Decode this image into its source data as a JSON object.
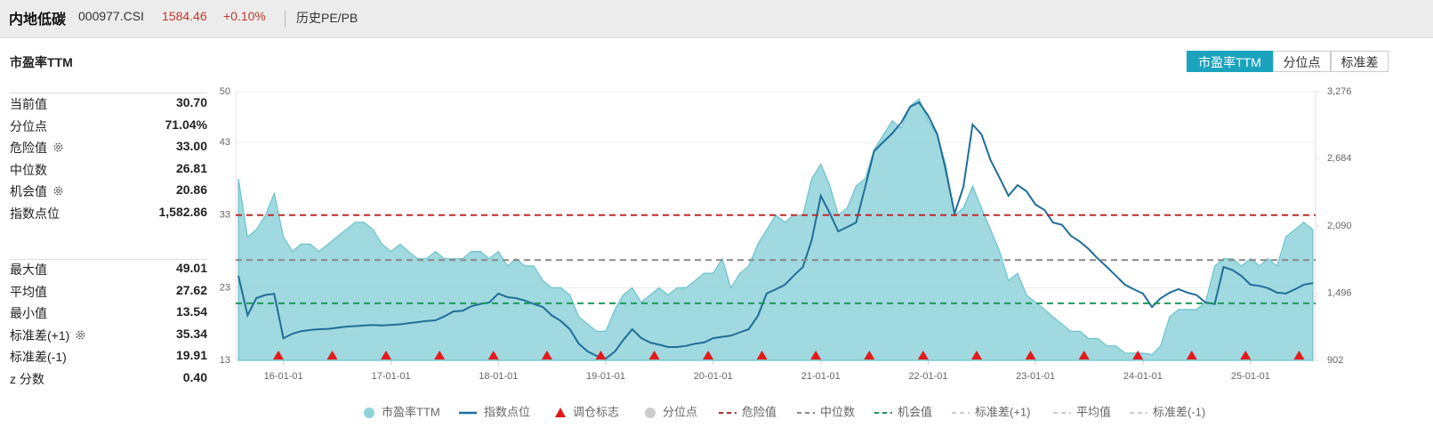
{
  "header": {
    "name": "内地低碳",
    "code": "000977.CSI",
    "price": "1584.46",
    "change": "+0.10%",
    "tab": "历史PE/PB"
  },
  "panel_title": "市盈率TTM",
  "buttons": [
    "市盈率TTM",
    "分位点",
    "标准差"
  ],
  "stats": [
    {
      "name": "当前值",
      "value": 30.7,
      "label": "30.70"
    },
    {
      "name": "分位点",
      "value": 71.04,
      "label": "71.04%"
    },
    {
      "name": "危险值",
      "value": 33,
      "label": "33.00",
      "gear": true
    },
    {
      "name": "中位数",
      "value": 26.81,
      "label": "26.81"
    },
    {
      "name": "机会值",
      "value": 20.86,
      "label": "20.86",
      "gear": true
    },
    {
      "name": "指数点位",
      "value": 1582.86,
      "label": "1,582.86"
    },
    {
      "name": "最大值",
      "value": 49.01,
      "label": "49.01"
    },
    {
      "name": "平均值",
      "value": 27.62,
      "label": "27.62"
    },
    {
      "name": "最小值",
      "value": 13.54,
      "label": "13.54"
    },
    {
      "name": "标准差(+1)",
      "value": 35.34,
      "label": "35.34",
      "gear": true
    },
    {
      "name": "标准差(-1)",
      "value": 19.91,
      "label": "19.91"
    },
    {
      "name": "z 分数",
      "value": 0.4,
      "label": "0.40"
    }
  ],
  "chart_data": {
    "type": "line",
    "x": [
      "15-08-01",
      "15-09-01",
      "15-10-01",
      "15-11-01",
      "15-12-01",
      "16-01-01",
      "16-02-01",
      "16-03-01",
      "16-04-01",
      "16-05-01",
      "16-06-01",
      "16-07-01",
      "16-08-01",
      "16-09-01",
      "16-10-01",
      "16-11-01",
      "16-12-01",
      "17-01-01",
      "17-02-01",
      "17-03-01",
      "17-04-01",
      "17-05-01",
      "17-06-01",
      "17-07-01",
      "17-08-01",
      "17-09-01",
      "17-10-01",
      "17-11-01",
      "17-12-01",
      "18-01-01",
      "18-02-01",
      "18-03-01",
      "18-04-01",
      "18-05-01",
      "18-06-01",
      "18-07-01",
      "18-08-01",
      "18-09-01",
      "18-10-01",
      "18-11-01",
      "18-12-01",
      "19-01-01",
      "19-02-01",
      "19-03-01",
      "19-04-01",
      "19-05-01",
      "19-06-01",
      "19-07-01",
      "19-08-01",
      "19-09-01",
      "19-10-01",
      "19-11-01",
      "19-12-01",
      "20-01-01",
      "20-02-01",
      "20-03-01",
      "20-04-01",
      "20-05-01",
      "20-06-01",
      "20-07-01",
      "20-08-01",
      "20-09-01",
      "20-10-01",
      "20-11-01",
      "20-12-01",
      "21-01-01",
      "21-02-01",
      "21-03-01",
      "21-04-01",
      "21-05-01",
      "21-06-01",
      "21-07-01",
      "21-08-01",
      "21-09-01",
      "21-10-01",
      "21-11-01",
      "21-12-01",
      "22-01-01",
      "22-02-01",
      "22-03-01",
      "22-04-01",
      "22-05-01",
      "22-06-01",
      "22-07-01",
      "22-08-01",
      "22-09-01",
      "22-10-01",
      "22-11-01",
      "22-12-01",
      "23-01-01",
      "23-02-01",
      "23-03-01",
      "23-04-01",
      "23-05-01",
      "23-06-01",
      "23-07-01",
      "23-08-01",
      "23-09-01",
      "23-10-01",
      "23-11-01",
      "23-12-01",
      "24-01-01",
      "24-02-01",
      "24-03-01",
      "24-04-01",
      "24-05-01",
      "24-06-01",
      "24-07-01",
      "24-08-01",
      "24-09-01",
      "24-10-01",
      "24-11-01",
      "24-12-01",
      "25-01-01",
      "25-02-01",
      "25-03-01",
      "25-04-01",
      "25-05-01",
      "25-06-01",
      "25-07-01",
      "25-08-01"
    ],
    "series": [
      {
        "name": "市盈率TTM",
        "color": "#8fd2d9",
        "area": true,
        "values": [
          38,
          30,
          31,
          33,
          36,
          30,
          28,
          29,
          29,
          28,
          29,
          30,
          31,
          32,
          32,
          31,
          29,
          28,
          29,
          28,
          27,
          27,
          28,
          27,
          27,
          27,
          28,
          28,
          27,
          28,
          26,
          27,
          26,
          26,
          24,
          23,
          23,
          22,
          19,
          18,
          17,
          17,
          20,
          22,
          23,
          21,
          22,
          23,
          22,
          23,
          23,
          24,
          25,
          25,
          27,
          23,
          25,
          26,
          29,
          31,
          33,
          32,
          33,
          33,
          38,
          40,
          37,
          33,
          34,
          37,
          38,
          42,
          44,
          46,
          45,
          48,
          49,
          46,
          44,
          40,
          33,
          34,
          37,
          34,
          31,
          28,
          24,
          25,
          22,
          21,
          20,
          19,
          18,
          17,
          17,
          16,
          16,
          15,
          15,
          14,
          14,
          14,
          13.8,
          15,
          19,
          20,
          20,
          20,
          21,
          26,
          27,
          27,
          26,
          27,
          26,
          27,
          26,
          30,
          31,
          32,
          31
        ]
      },
      {
        "name": "指数点位",
        "color": "#1f6e99",
        "axis": "y2",
        "values": [
          1649,
          1300,
          1452,
          1480,
          1490,
          1098,
          1138,
          1160,
          1170,
          1177,
          1180,
          1190,
          1200,
          1205,
          1210,
          1215,
          1210,
          1216,
          1220,
          1230,
          1240,
          1250,
          1256,
          1290,
          1334,
          1340,
          1380,
          1400,
          1413,
          1492,
          1460,
          1452,
          1430,
          1400,
          1374,
          1300,
          1250,
          1177,
          1050,
          980,
          941,
          918,
          981,
          1080,
          1177,
          1100,
          1059,
          1040,
          1020,
          1020,
          1030,
          1050,
          1060,
          1098,
          1110,
          1120,
          1150,
          1177,
          1295,
          1492,
          1530,
          1570,
          1650,
          1727,
          1963,
          2356,
          2199,
          2042,
          2080,
          2120,
          2435,
          2749,
          2830,
          2907,
          3000,
          3143,
          3182,
          3064,
          2900,
          2592,
          2199,
          2435,
          2985,
          2900,
          2671,
          2514,
          2356,
          2450,
          2396,
          2278,
          2230,
          2120,
          2100,
          2003,
          1950,
          1885,
          1800,
          1727,
          1650,
          1570,
          1530,
          1492,
          1374,
          1450,
          1500,
          1531,
          1500,
          1480,
          1413,
          1400,
          1727,
          1700,
          1649,
          1570,
          1560,
          1540,
          1500,
          1492,
          1530,
          1570,
          1584
        ]
      }
    ],
    "rebalance": {
      "name": "调仓标志",
      "color": "#e41a1a",
      "x": [
        "15-12-15",
        "16-06-15",
        "16-12-15",
        "17-06-15",
        "17-12-15",
        "18-06-15",
        "18-12-15",
        "19-06-15",
        "19-12-15",
        "20-06-15",
        "20-12-15",
        "21-06-15",
        "21-12-15",
        "22-06-15",
        "22-12-15",
        "23-06-15",
        "23-12-15",
        "24-06-15",
        "24-12-15",
        "25-06-15"
      ]
    },
    "reference_lines": [
      {
        "name": "危险值",
        "color": "#c0282d"
      },
      {
        "name": "中位数",
        "color": "#888888"
      },
      {
        "name": "机会值",
        "color": "#1e9a5a"
      }
    ],
    "inactive_legend": [
      {
        "name": "分位点",
        "icon": "dot"
      },
      {
        "name": "标准差(+1)",
        "icon": "dash"
      },
      {
        "name": "平均值",
        "icon": "dash"
      },
      {
        "name": "标准差(-1)",
        "icon": "dash"
      }
    ],
    "xlim": [
      "15-08-01",
      "25-08-01"
    ],
    "xticks": [
      "16-01-01",
      "17-01-01",
      "18-01-01",
      "19-01-01",
      "20-01-01",
      "21-01-01",
      "22-01-01",
      "23-01-01",
      "24-01-01",
      "25-01-01"
    ],
    "ylim": [
      13,
      50
    ],
    "yticks": [
      13,
      23,
      33,
      43,
      50
    ],
    "y2lim": [
      902,
      3276
    ],
    "y2ticks": [
      902,
      {
        "value": 1496,
        "label": "1,496"
      },
      {
        "value": 2090,
        "label": "2,090"
      },
      {
        "value": 2684,
        "label": "2,684"
      },
      {
        "value": 3276,
        "label": "3,276"
      }
    ],
    "grid": true
  }
}
